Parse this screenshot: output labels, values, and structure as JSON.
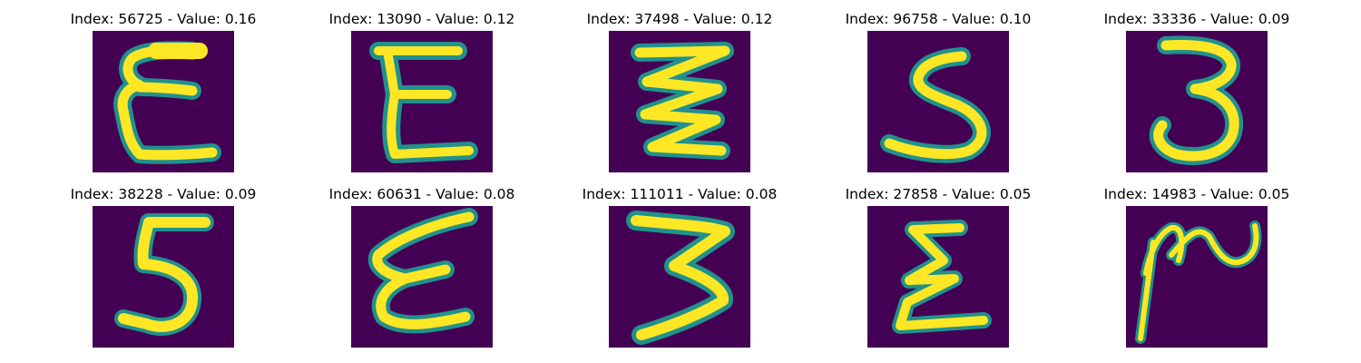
{
  "colors": {
    "background": "#440154",
    "stroke_outer": "#21918c",
    "stroke_mid": "#5ec962",
    "stroke_core": "#fde725"
  },
  "panels": [
    {
      "title": "Index: 56725 - Value: 0.16",
      "glyph": "epsilon-glyph"
    },
    {
      "title": "Index: 13090 - Value: 0.12",
      "glyph": "epsilon-glyph"
    },
    {
      "title": "Index: 37498 - Value: 0.12",
      "glyph": "zigzag-glyph"
    },
    {
      "title": "Index: 96758 - Value: 0.10",
      "glyph": "five-glyph"
    },
    {
      "title": "Index: 33336 - Value: 0.09",
      "glyph": "three-glyph"
    },
    {
      "title": "Index: 38228 - Value: 0.09",
      "glyph": "five-glyph"
    },
    {
      "title": "Index: 60631 - Value: 0.08",
      "glyph": "epsilon-glyph"
    },
    {
      "title": "Index: 111011 - Value: 0.08",
      "glyph": "three-glyph"
    },
    {
      "title": "Index: 27858 - Value: 0.05",
      "glyph": "sigma-glyph"
    },
    {
      "title": "Index: 14983 - Value: 0.05",
      "glyph": "scribble-glyph"
    }
  ]
}
